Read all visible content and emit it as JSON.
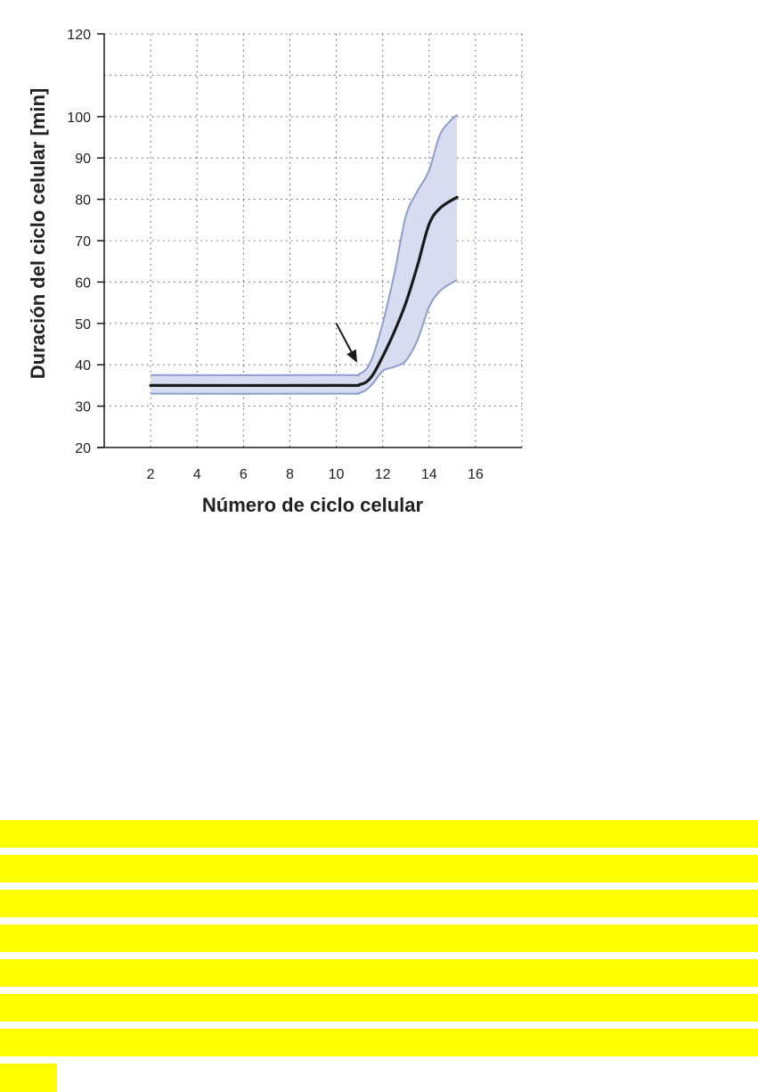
{
  "chart_data": {
    "type": "line",
    "xlabel": "Número de ciclo celular",
    "ylabel": "Duración del ciclo celular [min]",
    "x_ticks": [
      2,
      4,
      6,
      8,
      10,
      12,
      14,
      16
    ],
    "y_ticks": [
      20,
      30,
      40,
      50,
      60,
      70,
      80,
      90,
      100,
      120
    ],
    "xlim": [
      0,
      18
    ],
    "ylim": [
      20,
      120
    ],
    "grid": true,
    "series": [
      {
        "role": "mean",
        "color": "#1a1a1a",
        "x": [
          2,
          10,
          11,
          11.5,
          12,
          12.5,
          13,
          13.5,
          14,
          14.5,
          15.2
        ],
        "y": [
          35,
          35,
          35.2,
          37,
          42,
          48,
          55,
          64,
          74,
          78,
          80.5
        ]
      },
      {
        "role": "upper",
        "color": "#8e9dcc",
        "x": [
          2,
          10,
          11,
          11.5,
          12,
          12.5,
          13,
          13.5,
          14,
          14.5,
          15.2
        ],
        "y": [
          37.5,
          37.5,
          37.8,
          41,
          50,
          62,
          76,
          82,
          87,
          96,
          100.5
        ]
      },
      {
        "role": "lower",
        "color": "#8e9dcc",
        "x": [
          2,
          10,
          11,
          11.5,
          12,
          12.5,
          13,
          13.5,
          14,
          14.5,
          15.2
        ],
        "y": [
          33,
          33,
          33.2,
          35,
          38.5,
          39.5,
          41,
          46,
          54,
          58,
          60.5
        ]
      }
    ],
    "band_fill": "#d7dcf0",
    "annotation": {
      "type": "arrow",
      "x1": 10,
      "y1": 50,
      "x2": 10.9,
      "y2": 40.5
    }
  },
  "highlight": {
    "color": "#ffff00",
    "bars": 8
  }
}
